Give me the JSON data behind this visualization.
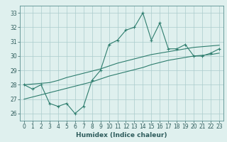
{
  "x_data": [
    0,
    1,
    2,
    3,
    4,
    5,
    6,
    7,
    8,
    9,
    10,
    11,
    12,
    13,
    14,
    15,
    16,
    17,
    18,
    19,
    20,
    21,
    22,
    23
  ],
  "line1_y": [
    28.0,
    27.7,
    28.0,
    26.7,
    26.5,
    26.7,
    26.0,
    26.5,
    28.3,
    29.0,
    30.8,
    31.1,
    31.8,
    32.0,
    33.0,
    31.1,
    32.3,
    30.5,
    30.5,
    30.8,
    30.0,
    30.0,
    30.2,
    30.5
  ],
  "line2_y": [
    28.0,
    28.05,
    28.1,
    28.15,
    28.3,
    28.5,
    28.65,
    28.8,
    28.95,
    29.1,
    29.3,
    29.5,
    29.65,
    29.8,
    29.95,
    30.1,
    30.2,
    30.3,
    30.4,
    30.5,
    30.6,
    30.65,
    30.7,
    30.75
  ],
  "line3_y": [
    27.0,
    27.15,
    27.3,
    27.45,
    27.6,
    27.75,
    27.9,
    28.05,
    28.2,
    28.4,
    28.6,
    28.75,
    28.9,
    29.05,
    29.2,
    29.4,
    29.55,
    29.7,
    29.8,
    29.9,
    30.0,
    30.05,
    30.1,
    30.2
  ],
  "line_color": "#2E7D6E",
  "bg_color": "#DFF0EE",
  "grid_color": "#AACCCC",
  "xlabel": "Humidex (Indice chaleur)",
  "ylim": [
    25.5,
    33.5
  ],
  "xlim": [
    -0.5,
    23.5
  ],
  "yticks": [
    26,
    27,
    28,
    29,
    30,
    31,
    32,
    33
  ],
  "xticks": [
    0,
    1,
    2,
    3,
    4,
    5,
    6,
    7,
    8,
    9,
    10,
    11,
    12,
    13,
    14,
    15,
    16,
    17,
    18,
    19,
    20,
    21,
    22,
    23
  ],
  "tick_fontsize": 5.5,
  "xlabel_fontsize": 6.5
}
